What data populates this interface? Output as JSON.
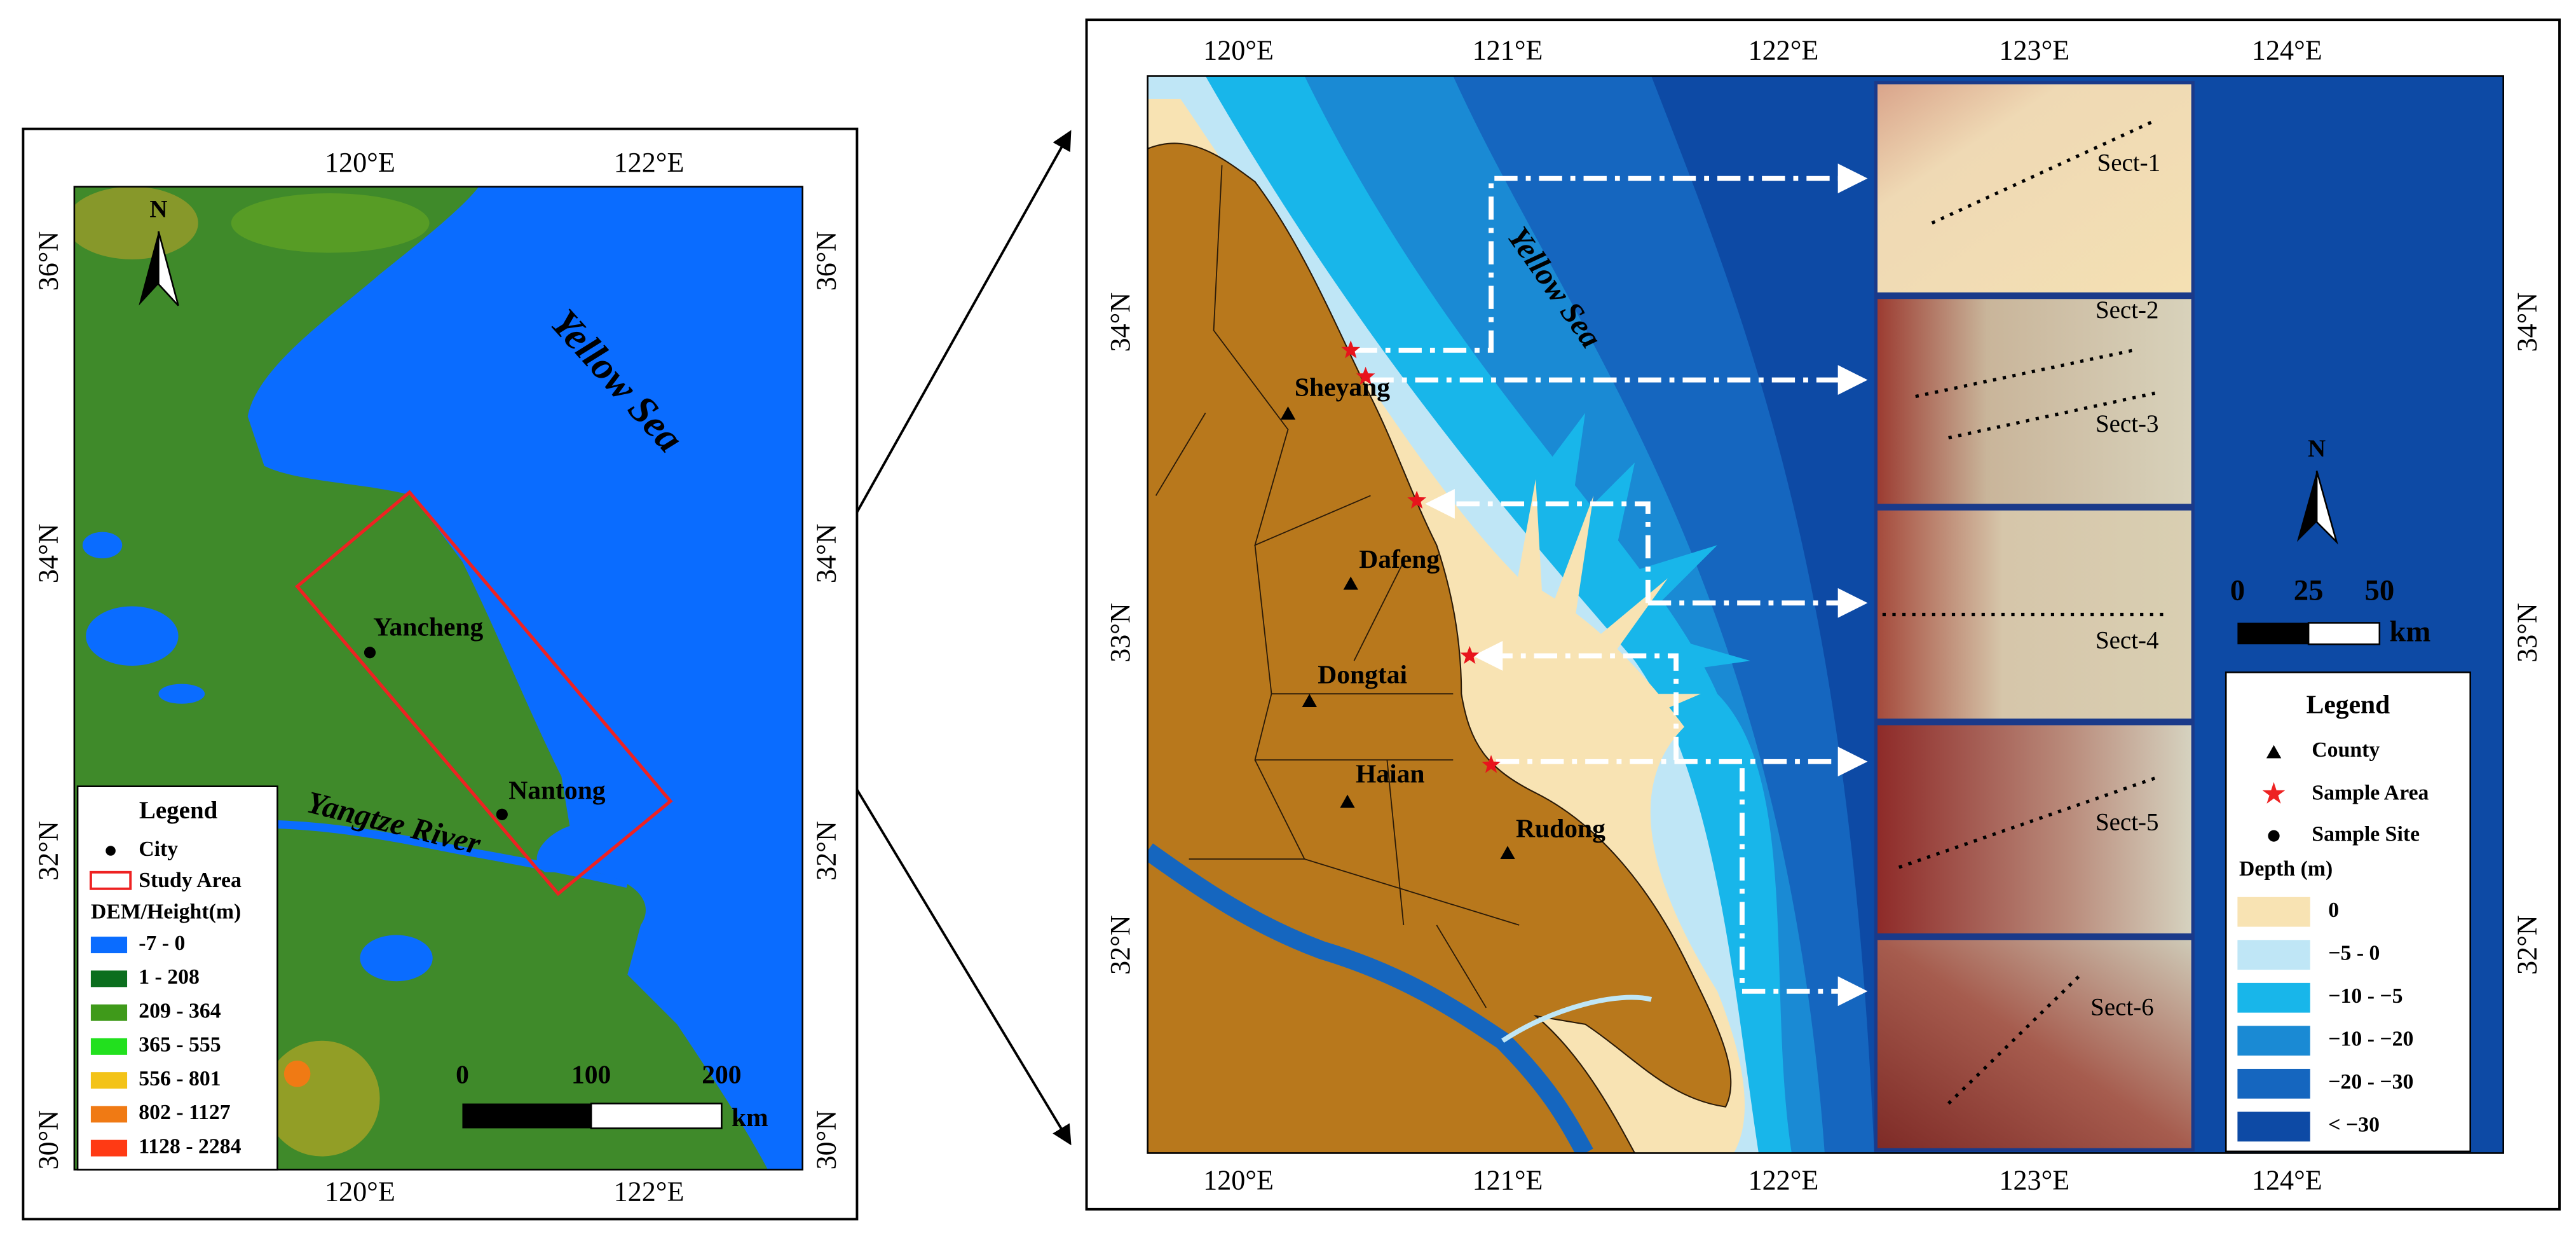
{
  "left_map": {
    "lon_labels": [
      "120°E",
      "122°E"
    ],
    "lat_labels": [
      "36°N",
      "34°N",
      "32°N",
      "30°N"
    ],
    "sea_label": "Yellow Sea",
    "river_label": "Yangtze River",
    "cities": [
      "Yancheng",
      "Nantong"
    ],
    "north_label": "N",
    "scale_bar": {
      "ticks": [
        0,
        100,
        200
      ],
      "unit": "km"
    },
    "legend": {
      "title": "Legend",
      "symbols": [
        "City",
        "Study Area"
      ],
      "dem_title": "DEM/Height(m)",
      "dem_classes": [
        {
          "label": "-7 - 0",
          "color": "#0a6cff"
        },
        {
          "label": "1 - 208",
          "color": "#0b6e1e"
        },
        {
          "label": "209 - 364",
          "color": "#3f9a1a"
        },
        {
          "label": "365 - 555",
          "color": "#22e01e"
        },
        {
          "label": "556 - 801",
          "color": "#f3c318"
        },
        {
          "label": "802 - 1127",
          "color": "#f07a14"
        },
        {
          "label": "1128 - 2284",
          "color": "#ff3a14"
        }
      ]
    }
  },
  "right_map": {
    "lon_labels": [
      "120°E",
      "121°E",
      "122°E",
      "123°E",
      "124°E"
    ],
    "lat_labels": [
      "34°N",
      "33°N",
      "32°N"
    ],
    "sea_label": "Yellow Sea",
    "counties": [
      "Sheyang",
      "Dafeng",
      "Dongtai",
      "Haian",
      "Rudong"
    ],
    "sections": [
      "Sect-1",
      "Sect-2",
      "Sect-3",
      "Sect-4",
      "Sect-5",
      "Sect-6"
    ],
    "north_label": "N",
    "scale_bar": {
      "ticks": [
        0,
        25,
        50
      ],
      "unit": "km"
    },
    "legend": {
      "title": "Legend",
      "symbols": [
        "County",
        "Sample Area",
        "Sample Site"
      ],
      "depth_title": "Depth (m)",
      "depth_classes": [
        {
          "label": "0",
          "color": "#f8e3b3"
        },
        {
          "label": "−5 - 0",
          "color": "#bfe6f6"
        },
        {
          "label": "−10 - −5",
          "color": "#18b6ea"
        },
        {
          "label": "−10 - −20",
          "color": "#1a8ad4"
        },
        {
          "label": "−20 - −30",
          "color": "#1566bf"
        },
        {
          "label": "< −30",
          "color": "#0d4aa5"
        }
      ]
    }
  }
}
